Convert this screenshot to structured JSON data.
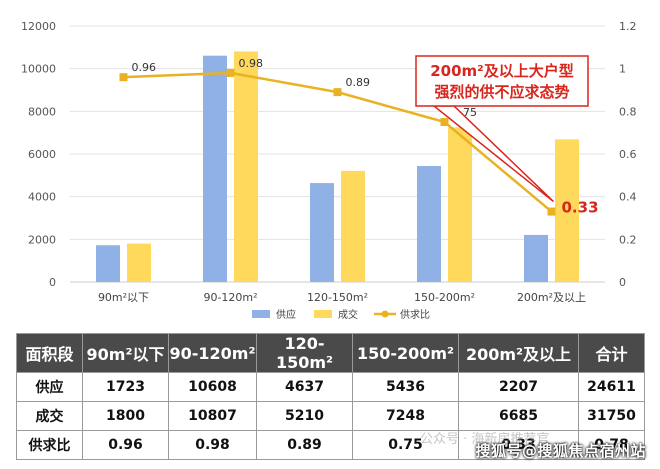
{
  "chart_data": {
    "type": "bar",
    "categories": [
      "90m²以下",
      "90-120m²",
      "120-150m²",
      "150-200m²",
      "200m²及以上"
    ],
    "series": [
      {
        "name": "供应",
        "kind": "bar",
        "color": "#8FB1E6",
        "values": [
          1723,
          10608,
          4637,
          5436,
          2207
        ]
      },
      {
        "name": "成交",
        "kind": "bar",
        "color": "#FFD95C",
        "values": [
          1800,
          10807,
          5210,
          7248,
          6685
        ]
      },
      {
        "name": "供求比",
        "kind": "line",
        "axis": "right",
        "color": "#E8B222",
        "values": [
          0.96,
          0.98,
          0.89,
          0.75,
          0.33
        ]
      }
    ],
    "point_labels": [
      "0.96",
      "0.98",
      "0.89",
      "0.75",
      "0.33"
    ],
    "y_left": {
      "min": 0,
      "max": 12000,
      "ticks": [
        "0",
        "2000",
        "4000",
        "6000",
        "8000",
        "10000",
        "12000"
      ]
    },
    "y_right": {
      "min": 0,
      "max": 1.2,
      "ticks": [
        "0",
        "0.2",
        "0.4",
        "0.6",
        "0.8",
        "1",
        "1.2"
      ]
    },
    "grid": true,
    "legend_position": "bottom",
    "annotation": {
      "lines": [
        "200m²及以上大户型",
        "强烈的供不应求态势"
      ],
      "color": "#D9261C"
    },
    "highlight_color": "#D9261C"
  },
  "table": {
    "header": [
      "面积段",
      "90m²以下",
      "90-120m²",
      "120-150m²",
      "150-200m²",
      "200m²及以上",
      "合计"
    ],
    "rows": [
      {
        "label": "供应",
        "cells": [
          "1723",
          "10608",
          "4637",
          "5436",
          "2207",
          "24611"
        ]
      },
      {
        "label": "成交",
        "cells": [
          "1800",
          "10807",
          "5210",
          "7248",
          "6685",
          "31750"
        ]
      },
      {
        "label": "供求比",
        "cells": [
          "0.96",
          "0.98",
          "0.89",
          "0.75",
          "0.33",
          "0.78"
        ]
      }
    ]
  },
  "watermarks": {
    "bottom": "搜狐号@搜狐焦点宿州站",
    "faint": "公众号 · 海新房推荐官"
  }
}
